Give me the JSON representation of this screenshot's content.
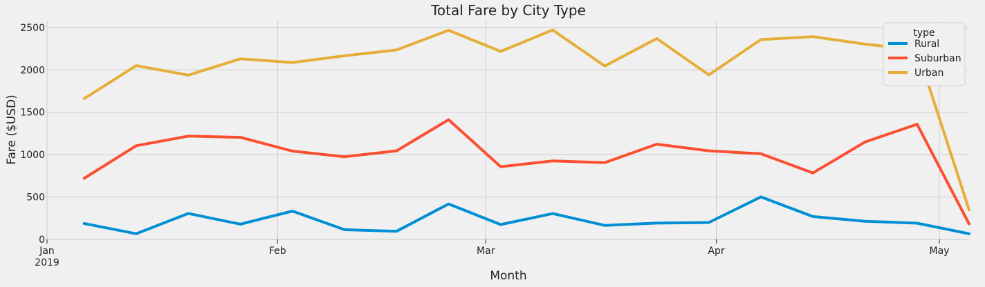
{
  "chart_data": {
    "type": "line",
    "title": "Total Fare by City Type",
    "xlabel": "Month",
    "ylabel": "Fare ($USD)",
    "ylim": [
      0,
      2580
    ],
    "yticks": [
      0,
      500,
      1000,
      1500,
      2000,
      2500
    ],
    "ytick_labels": [
      "0",
      "500",
      "1000",
      "1500",
      "2000",
      "2500"
    ],
    "x_dates": [
      "2019-01-06",
      "2019-01-13",
      "2019-01-20",
      "2019-01-27",
      "2019-02-03",
      "2019-02-10",
      "2019-02-17",
      "2019-02-24",
      "2019-03-03",
      "2019-03-10",
      "2019-03-17",
      "2019-03-24",
      "2019-03-31",
      "2019-04-07",
      "2019-04-14",
      "2019-04-21",
      "2019-04-28",
      "2019-05-05"
    ],
    "xlim": [
      "2019-01-01",
      "2019-05-05"
    ],
    "xticks": [
      {
        "date": "2019-01-01",
        "label": "Jan",
        "sublabel": "2019"
      },
      {
        "date": "2019-02-01",
        "label": "Feb",
        "sublabel": ""
      },
      {
        "date": "2019-03-01",
        "label": "Mar",
        "sublabel": ""
      },
      {
        "date": "2019-04-01",
        "label": "Apr",
        "sublabel": ""
      },
      {
        "date": "2019-05-01",
        "label": "May",
        "sublabel": ""
      }
    ],
    "grid": true,
    "legend": {
      "title": "type",
      "position": "top-right"
    },
    "series": [
      {
        "name": "Rural",
        "color": "#008fd5",
        "values": [
          187,
          67,
          306,
          180,
          334,
          115,
          96,
          418,
          175,
          304,
          165,
          192,
          199,
          501,
          269,
          214,
          191,
          67
        ]
      },
      {
        "name": "Suburban",
        "color": "#fc4f30",
        "values": [
          721,
          1105,
          1218,
          1204,
          1042,
          975,
          1045,
          1412,
          858,
          926,
          906,
          1123,
          1045,
          1010,
          784,
          1149,
          1358,
          183
        ]
      },
      {
        "name": "Urban",
        "color": "#e5ae38",
        "values": [
          1661,
          2050,
          1938,
          2130,
          2087,
          2166,
          2235,
          2467,
          2218,
          2470,
          2045,
          2369,
          1941,
          2357,
          2392,
          2303,
          2238,
          348
        ]
      }
    ]
  }
}
